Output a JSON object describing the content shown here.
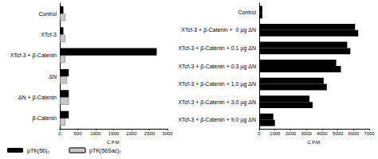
{
  "chart_data": [
    {
      "type": "bar",
      "orientation": "horizontal",
      "categories": [
        "Control",
        "XTcf-3",
        "XTcf-3 + β-Catenin",
        "ΔN",
        "ΔN + β-Catenin",
        "β-Catenin"
      ],
      "series": [
        {
          "name": "pTK(56)₂",
          "color": "#000000",
          "values": [
            100,
            100,
            2700,
            250,
            250,
            250
          ]
        },
        {
          "name": "pTK(56Sac)₇",
          "color": "#c8c8c8",
          "values": [
            150,
            150,
            150,
            200,
            250,
            150
          ]
        }
      ],
      "xlabel": "C.P.M.",
      "xlim": [
        0,
        3000
      ],
      "xticks": [
        0,
        500,
        1000,
        1500,
        2000,
        2500,
        3000
      ],
      "grid": false,
      "legend": "bottom-left"
    },
    {
      "type": "bar",
      "orientation": "horizontal",
      "categories": [
        "Control",
        "XTcf-3 + β-Catenin +  0 µg ΔN",
        "XTcf-3 + β-Catenin + 0.1 µg ΔN",
        "XTcf-3 + β-Catenin + 0.3 µg ΔN",
        "XTcf-3 + β-Catenin + 1.0 µg ΔN",
        "XTcf-3 + β-Catenin + 3.0 µg ΔN",
        "XTcf-3 + β-Catenin + 9.0 µg ΔN"
      ],
      "series": [
        {
          "name": "pTK(56)₂",
          "color": "#000000",
          "values": [
            200,
            6100,
            5600,
            4900,
            4100,
            3200,
            900
          ]
        },
        {
          "name": "pTK(56)₂",
          "color": "#000000",
          "values": [
            200,
            6300,
            5800,
            5200,
            4300,
            3400,
            1000
          ]
        }
      ],
      "xlabel": "C.P.M.",
      "xlim": [
        0,
        7000
      ],
      "xticks": [
        0,
        1000,
        2000,
        3000,
        4000,
        5000,
        6000,
        7000
      ],
      "grid": false
    }
  ]
}
